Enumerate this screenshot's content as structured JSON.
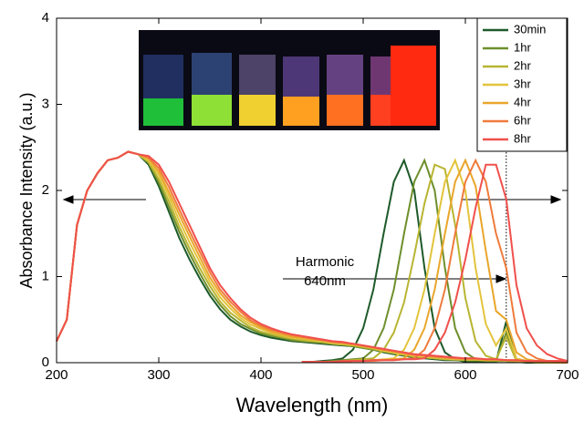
{
  "chart_data": {
    "type": "line",
    "xlabel": "Wavelength (nm)",
    "ylabel": "Absorbance Intensity (a.u.)",
    "annotation": [
      "Harmonic",
      "640nm"
    ],
    "harmonic_line": 640,
    "xlim": [
      200,
      700
    ],
    "xticks": [
      200,
      300,
      400,
      500,
      600,
      700
    ],
    "ylim": [
      0,
      4
    ],
    "yticks": [
      0,
      1,
      2,
      3,
      4
    ],
    "legend": "upper right",
    "x": [
      200,
      210,
      220,
      230,
      240,
      250,
      260,
      270,
      280,
      290,
      300,
      310,
      320,
      330,
      340,
      350,
      360,
      370,
      380,
      390,
      400,
      410,
      420,
      430,
      440,
      450,
      460,
      470,
      480,
      490,
      500,
      510,
      520,
      530,
      540,
      550,
      560,
      570,
      580,
      590,
      600,
      610,
      620,
      630,
      640,
      650,
      660,
      670,
      680,
      690,
      700
    ],
    "emission_x": [
      440,
      450,
      460,
      470,
      480,
      490,
      500,
      510,
      520,
      530,
      540,
      550,
      560,
      570,
      580,
      590,
      600,
      610,
      620,
      630,
      640,
      650,
      660,
      670,
      680,
      690,
      700
    ],
    "series": [
      {
        "name": "30min",
        "color": "#1e5a2a",
        "values": [
          0.25,
          0.5,
          1.6,
          2.0,
          2.2,
          2.35,
          2.38,
          2.45,
          2.42,
          2.3,
          2.05,
          1.75,
          1.45,
          1.2,
          0.98,
          0.78,
          0.62,
          0.5,
          0.42,
          0.36,
          0.32,
          0.29,
          0.27,
          0.25,
          0.24,
          0.23,
          0.22,
          0.21,
          0.2,
          0.19,
          0.17,
          0.15,
          0.12,
          0.1,
          0.08,
          0.06,
          0.05,
          0.04,
          0.03,
          0.03,
          0.02,
          0.02,
          0.02,
          0.02,
          0.02,
          0.01,
          0.01,
          0.01,
          0.01,
          0.01,
          0.01
        ],
        "emission": [
          0.01,
          0.01,
          0.02,
          0.03,
          0.05,
          0.15,
          0.4,
          0.85,
          1.5,
          2.1,
          2.35,
          2.0,
          1.1,
          0.4,
          0.12,
          0.04,
          0.01,
          0.01,
          0.01,
          0.01,
          0.48,
          0.01,
          0,
          0,
          0,
          0,
          0
        ]
      },
      {
        "name": "1hr",
        "color": "#6e8f2c",
        "values": [
          0.25,
          0.5,
          1.6,
          2.0,
          2.2,
          2.35,
          2.38,
          2.45,
          2.42,
          2.32,
          2.09,
          1.81,
          1.52,
          1.27,
          1.04,
          0.83,
          0.67,
          0.54,
          0.45,
          0.39,
          0.34,
          0.31,
          0.29,
          0.26,
          0.25,
          0.24,
          0.23,
          0.22,
          0.21,
          0.19,
          0.17,
          0.15,
          0.13,
          0.11,
          0.09,
          0.07,
          0.06,
          0.05,
          0.04,
          0.03,
          0.03,
          0.03,
          0.02,
          0.02,
          0.02,
          0.01,
          0.01,
          0.01,
          0.01,
          0.01,
          0.01
        ],
        "emission": [
          0.01,
          0.01,
          0.01,
          0.02,
          0.03,
          0.04,
          0.05,
          0.15,
          0.4,
          0.85,
          1.5,
          2.1,
          2.35,
          2.0,
          1.1,
          0.4,
          0.12,
          0.04,
          0.02,
          0.02,
          0.35,
          0.02,
          0.01,
          0,
          0,
          0,
          0
        ]
      },
      {
        "name": "2hr",
        "color": "#b8b532",
        "values": [
          0.25,
          0.5,
          1.6,
          2.0,
          2.2,
          2.35,
          2.38,
          2.45,
          2.42,
          2.33,
          2.13,
          1.87,
          1.58,
          1.33,
          1.1,
          0.89,
          0.71,
          0.58,
          0.49,
          0.41,
          0.36,
          0.33,
          0.3,
          0.28,
          0.26,
          0.25,
          0.24,
          0.22,
          0.21,
          0.2,
          0.18,
          0.16,
          0.13,
          0.11,
          0.09,
          0.07,
          0.06,
          0.05,
          0.04,
          0.04,
          0.03,
          0.03,
          0.03,
          0.03,
          0.02,
          0.02,
          0.01,
          0.01,
          0.01,
          0.01,
          0.01
        ],
        "emission": [
          0.01,
          0.01,
          0.01,
          0.01,
          0.02,
          0.03,
          0.04,
          0.05,
          0.15,
          0.35,
          0.7,
          1.25,
          1.85,
          2.3,
          2.25,
          1.6,
          0.75,
          0.25,
          0.08,
          0.04,
          0.3,
          0.02,
          0.01,
          0,
          0,
          0,
          0
        ]
      },
      {
        "name": "3hr",
        "color": "#e3c43c",
        "values": [
          0.25,
          0.5,
          1.6,
          2.0,
          2.2,
          2.35,
          2.38,
          2.45,
          2.42,
          2.35,
          2.18,
          1.93,
          1.65,
          1.4,
          1.17,
          0.94,
          0.76,
          0.63,
          0.52,
          0.44,
          0.39,
          0.35,
          0.32,
          0.29,
          0.28,
          0.26,
          0.25,
          0.23,
          0.22,
          0.21,
          0.19,
          0.17,
          0.14,
          0.12,
          0.1,
          0.08,
          0.07,
          0.06,
          0.05,
          0.04,
          0.04,
          0.04,
          0.03,
          0.03,
          0.03,
          0.02,
          0.02,
          0.02,
          0.02,
          0.02,
          0.02
        ],
        "emission": [
          0.01,
          0.01,
          0.01,
          0.01,
          0.01,
          0.02,
          0.02,
          0.03,
          0.04,
          0.05,
          0.15,
          0.4,
          0.85,
          1.5,
          2.1,
          2.35,
          2.0,
          1.1,
          0.45,
          0.2,
          0.4,
          0.05,
          0.02,
          0.01,
          0,
          0,
          0
        ]
      },
      {
        "name": "4hr",
        "color": "#e9a62c",
        "values": [
          0.25,
          0.5,
          1.6,
          2.0,
          2.2,
          2.35,
          2.38,
          2.45,
          2.42,
          2.37,
          2.22,
          1.98,
          1.72,
          1.47,
          1.23,
          0.99,
          0.81,
          0.67,
          0.55,
          0.47,
          0.41,
          0.36,
          0.33,
          0.3,
          0.29,
          0.27,
          0.26,
          0.24,
          0.23,
          0.21,
          0.19,
          0.17,
          0.15,
          0.13,
          0.11,
          0.09,
          0.08,
          0.07,
          0.06,
          0.05,
          0.04,
          0.04,
          0.03,
          0.03,
          0.03,
          0.02,
          0.02,
          0.02,
          0.02,
          0.02,
          0.02
        ],
        "emission": [
          0.01,
          0.01,
          0.01,
          0.01,
          0.01,
          0.02,
          0.02,
          0.03,
          0.03,
          0.04,
          0.05,
          0.15,
          0.4,
          0.85,
          1.5,
          2.1,
          2.35,
          2.05,
          1.3,
          0.6,
          0.5,
          0.12,
          0.04,
          0.02,
          0.01,
          0,
          0
        ]
      },
      {
        "name": "6hr",
        "color": "#ef7b3c",
        "values": [
          0.25,
          0.5,
          1.6,
          2.0,
          2.2,
          2.35,
          2.38,
          2.45,
          2.42,
          2.38,
          2.26,
          2.04,
          1.78,
          1.53,
          1.29,
          1.05,
          0.85,
          0.71,
          0.59,
          0.49,
          0.43,
          0.38,
          0.35,
          0.32,
          0.3,
          0.28,
          0.26,
          0.24,
          0.23,
          0.22,
          0.2,
          0.18,
          0.15,
          0.13,
          0.11,
          0.09,
          0.08,
          0.07,
          0.06,
          0.05,
          0.05,
          0.05,
          0.04,
          0.04,
          0.03,
          0.03,
          0.02,
          0.02,
          0.02,
          0.02,
          0.02
        ],
        "emission": [
          0.01,
          0.01,
          0.01,
          0.01,
          0.01,
          0.02,
          0.02,
          0.02,
          0.03,
          0.03,
          0.04,
          0.05,
          0.15,
          0.4,
          0.85,
          1.5,
          2.1,
          2.35,
          2.1,
          1.5,
          1.1,
          0.35,
          0.12,
          0.05,
          0.02,
          0.01,
          0
        ]
      },
      {
        "name": "8hr",
        "color": "#f0504c",
        "values": [
          0.25,
          0.5,
          1.6,
          2.0,
          2.2,
          2.35,
          2.38,
          2.45,
          2.42,
          2.4,
          2.3,
          2.1,
          1.85,
          1.6,
          1.35,
          1.1,
          0.9,
          0.75,
          0.62,
          0.52,
          0.45,
          0.4,
          0.36,
          0.33,
          0.31,
          0.29,
          0.27,
          0.25,
          0.24,
          0.22,
          0.2,
          0.18,
          0.16,
          0.14,
          0.12,
          0.1,
          0.09,
          0.08,
          0.07,
          0.06,
          0.05,
          0.05,
          0.04,
          0.04,
          0.03,
          0.03,
          0.02,
          0.02,
          0.02,
          0.02,
          0.02
        ],
        "emission": [
          0.01,
          0.01,
          0.01,
          0.01,
          0.02,
          0.02,
          0.02,
          0.03,
          0.03,
          0.03,
          0.04,
          0.04,
          0.05,
          0.15,
          0.35,
          0.7,
          1.2,
          1.8,
          2.3,
          2.3,
          1.9,
          0.9,
          0.4,
          0.2,
          0.1,
          0.05,
          0.02
        ]
      }
    ]
  }
}
